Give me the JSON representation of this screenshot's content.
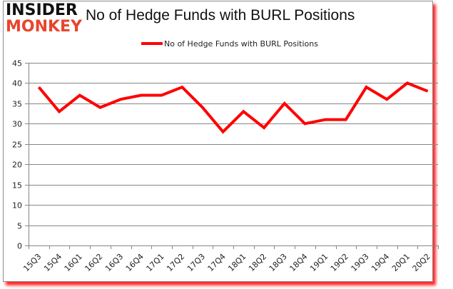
{
  "logo": {
    "line1": "INSIDER",
    "line2": "MONKEY"
  },
  "header": {
    "title": "No of Hedge Funds with BURL Positions"
  },
  "chart_data": {
    "type": "line",
    "title": "No of Hedge Funds with BURL Positions",
    "xlabel": "",
    "ylabel": "",
    "categories": [
      "15Q3",
      "15Q4",
      "16Q1",
      "16Q2",
      "16Q3",
      "16Q4",
      "17Q1",
      "17Q2",
      "17Q3",
      "17Q4",
      "18Q1",
      "18Q2",
      "18Q3",
      "18Q4",
      "19Q1",
      "19Q2",
      "19Q3",
      "19Q4",
      "20Q1",
      "20Q2"
    ],
    "series": [
      {
        "name": "No of Hedge Funds with BURL Positions",
        "color": "#ff0000",
        "values": [
          39,
          33,
          37,
          34,
          36,
          37,
          37,
          39,
          34,
          28,
          33,
          29,
          35,
          30,
          31,
          31,
          39,
          36,
          40,
          38
        ]
      }
    ],
    "ylim": [
      0,
      45
    ],
    "yticks": [
      0,
      5,
      10,
      15,
      20,
      25,
      30,
      35,
      40,
      45
    ],
    "grid": true,
    "legend_position": "top"
  },
  "colors": {
    "line": "#ff0000",
    "grid": "#868686",
    "shadow": "#ff0000",
    "logo_accent": "#e8452c"
  }
}
